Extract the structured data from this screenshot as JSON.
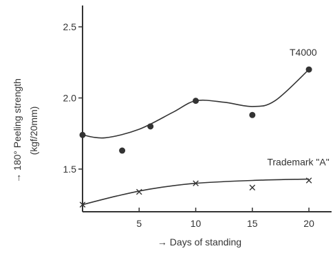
{
  "chart_data": {
    "type": "scatter",
    "xlabel": "→ Days of standing",
    "ylabel_line1": "→ 180° Peeling strength",
    "ylabel_line2": "(kgf/20mm)",
    "xlim": [
      0,
      22
    ],
    "ylim": [
      1.2,
      2.65
    ],
    "x_ticks": [
      5,
      10,
      15,
      20
    ],
    "y_ticks": [
      1.5,
      2.0,
      2.5
    ],
    "x_tick_labels": [
      "5",
      "10",
      "15",
      "20"
    ],
    "y_tick_labels": [
      "1.5",
      "2.0",
      "2.5"
    ],
    "grid": false,
    "series": [
      {
        "name": "T4000",
        "marker": "filled-circle",
        "color": "#333333",
        "points": [
          {
            "x": 0,
            "y": 1.74
          },
          {
            "x": 3.5,
            "y": 1.63
          },
          {
            "x": 6,
            "y": 1.8
          },
          {
            "x": 10,
            "y": 1.98
          },
          {
            "x": 15,
            "y": 1.88
          },
          {
            "x": 20,
            "y": 2.2
          }
        ],
        "curve": [
          {
            "x": 0,
            "y": 1.74
          },
          {
            "x": 2,
            "y": 1.72
          },
          {
            "x": 5,
            "y": 1.78
          },
          {
            "x": 8,
            "y": 1.9
          },
          {
            "x": 10,
            "y": 1.98
          },
          {
            "x": 12.5,
            "y": 1.97
          },
          {
            "x": 15,
            "y": 1.94
          },
          {
            "x": 17,
            "y": 1.98
          },
          {
            "x": 20,
            "y": 2.2
          }
        ]
      },
      {
        "name": "Trademark \"A\"",
        "marker": "x",
        "color": "#333333",
        "points": [
          {
            "x": 0,
            "y": 1.25
          },
          {
            "x": 5,
            "y": 1.34
          },
          {
            "x": 10,
            "y": 1.4
          },
          {
            "x": 15,
            "y": 1.37
          },
          {
            "x": 20,
            "y": 1.42
          }
        ],
        "curve": [
          {
            "x": 0,
            "y": 1.25
          },
          {
            "x": 3,
            "y": 1.31
          },
          {
            "x": 6,
            "y": 1.36
          },
          {
            "x": 10,
            "y": 1.4
          },
          {
            "x": 15,
            "y": 1.42
          },
          {
            "x": 20,
            "y": 1.43
          }
        ]
      }
    ]
  }
}
